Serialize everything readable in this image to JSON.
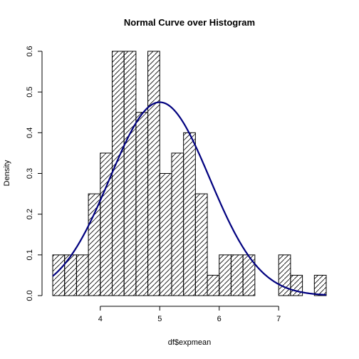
{
  "chart_data": {
    "type": "bar",
    "subtype": "histogram",
    "title": "Normal Curve over Histogram",
    "xlabel": "df$expmean",
    "ylabel": "Density",
    "xlim": [
      3.2,
      7.8
    ],
    "ylim": [
      0,
      0.62
    ],
    "x_ticks": [
      4,
      5,
      6,
      7
    ],
    "y_ticks": [
      0.0,
      0.1,
      0.2,
      0.3,
      0.4,
      0.5,
      0.6
    ],
    "y_tick_labels": [
      "0.0",
      "0.1",
      "0.2",
      "0.3",
      "0.4",
      "0.5",
      "0.6"
    ],
    "bin_width": 0.2,
    "fill": "diagonal hatching",
    "bins": [
      {
        "start": 3.2,
        "end": 3.4,
        "density": 0.1
      },
      {
        "start": 3.4,
        "end": 3.6,
        "density": 0.1
      },
      {
        "start": 3.6,
        "end": 3.8,
        "density": 0.1
      },
      {
        "start": 3.8,
        "end": 4.0,
        "density": 0.25
      },
      {
        "start": 4.0,
        "end": 4.2,
        "density": 0.35
      },
      {
        "start": 4.2,
        "end": 4.4,
        "density": 0.6
      },
      {
        "start": 4.4,
        "end": 4.6,
        "density": 0.6
      },
      {
        "start": 4.6,
        "end": 4.8,
        "density": 0.45
      },
      {
        "start": 4.8,
        "end": 5.0,
        "density": 0.6
      },
      {
        "start": 5.0,
        "end": 5.2,
        "density": 0.3
      },
      {
        "start": 5.2,
        "end": 5.4,
        "density": 0.35
      },
      {
        "start": 5.4,
        "end": 5.6,
        "density": 0.4
      },
      {
        "start": 5.6,
        "end": 5.8,
        "density": 0.25
      },
      {
        "start": 5.8,
        "end": 6.0,
        "density": 0.05
      },
      {
        "start": 6.0,
        "end": 6.2,
        "density": 0.1
      },
      {
        "start": 6.2,
        "end": 6.4,
        "density": 0.1
      },
      {
        "start": 6.4,
        "end": 6.6,
        "density": 0.1
      },
      {
        "start": 6.6,
        "end": 6.8,
        "density": 0.0
      },
      {
        "start": 6.8,
        "end": 7.0,
        "density": 0.0
      },
      {
        "start": 7.0,
        "end": 7.2,
        "density": 0.1
      },
      {
        "start": 7.2,
        "end": 7.4,
        "density": 0.05
      },
      {
        "start": 7.4,
        "end": 7.6,
        "density": 0.0
      },
      {
        "start": 7.6,
        "end": 7.8,
        "density": 0.05
      }
    ],
    "curve": {
      "kind": "normal density",
      "mean": 5.0,
      "sd": 0.84,
      "color": "#00007f"
    },
    "grid": false,
    "legend": "none"
  }
}
